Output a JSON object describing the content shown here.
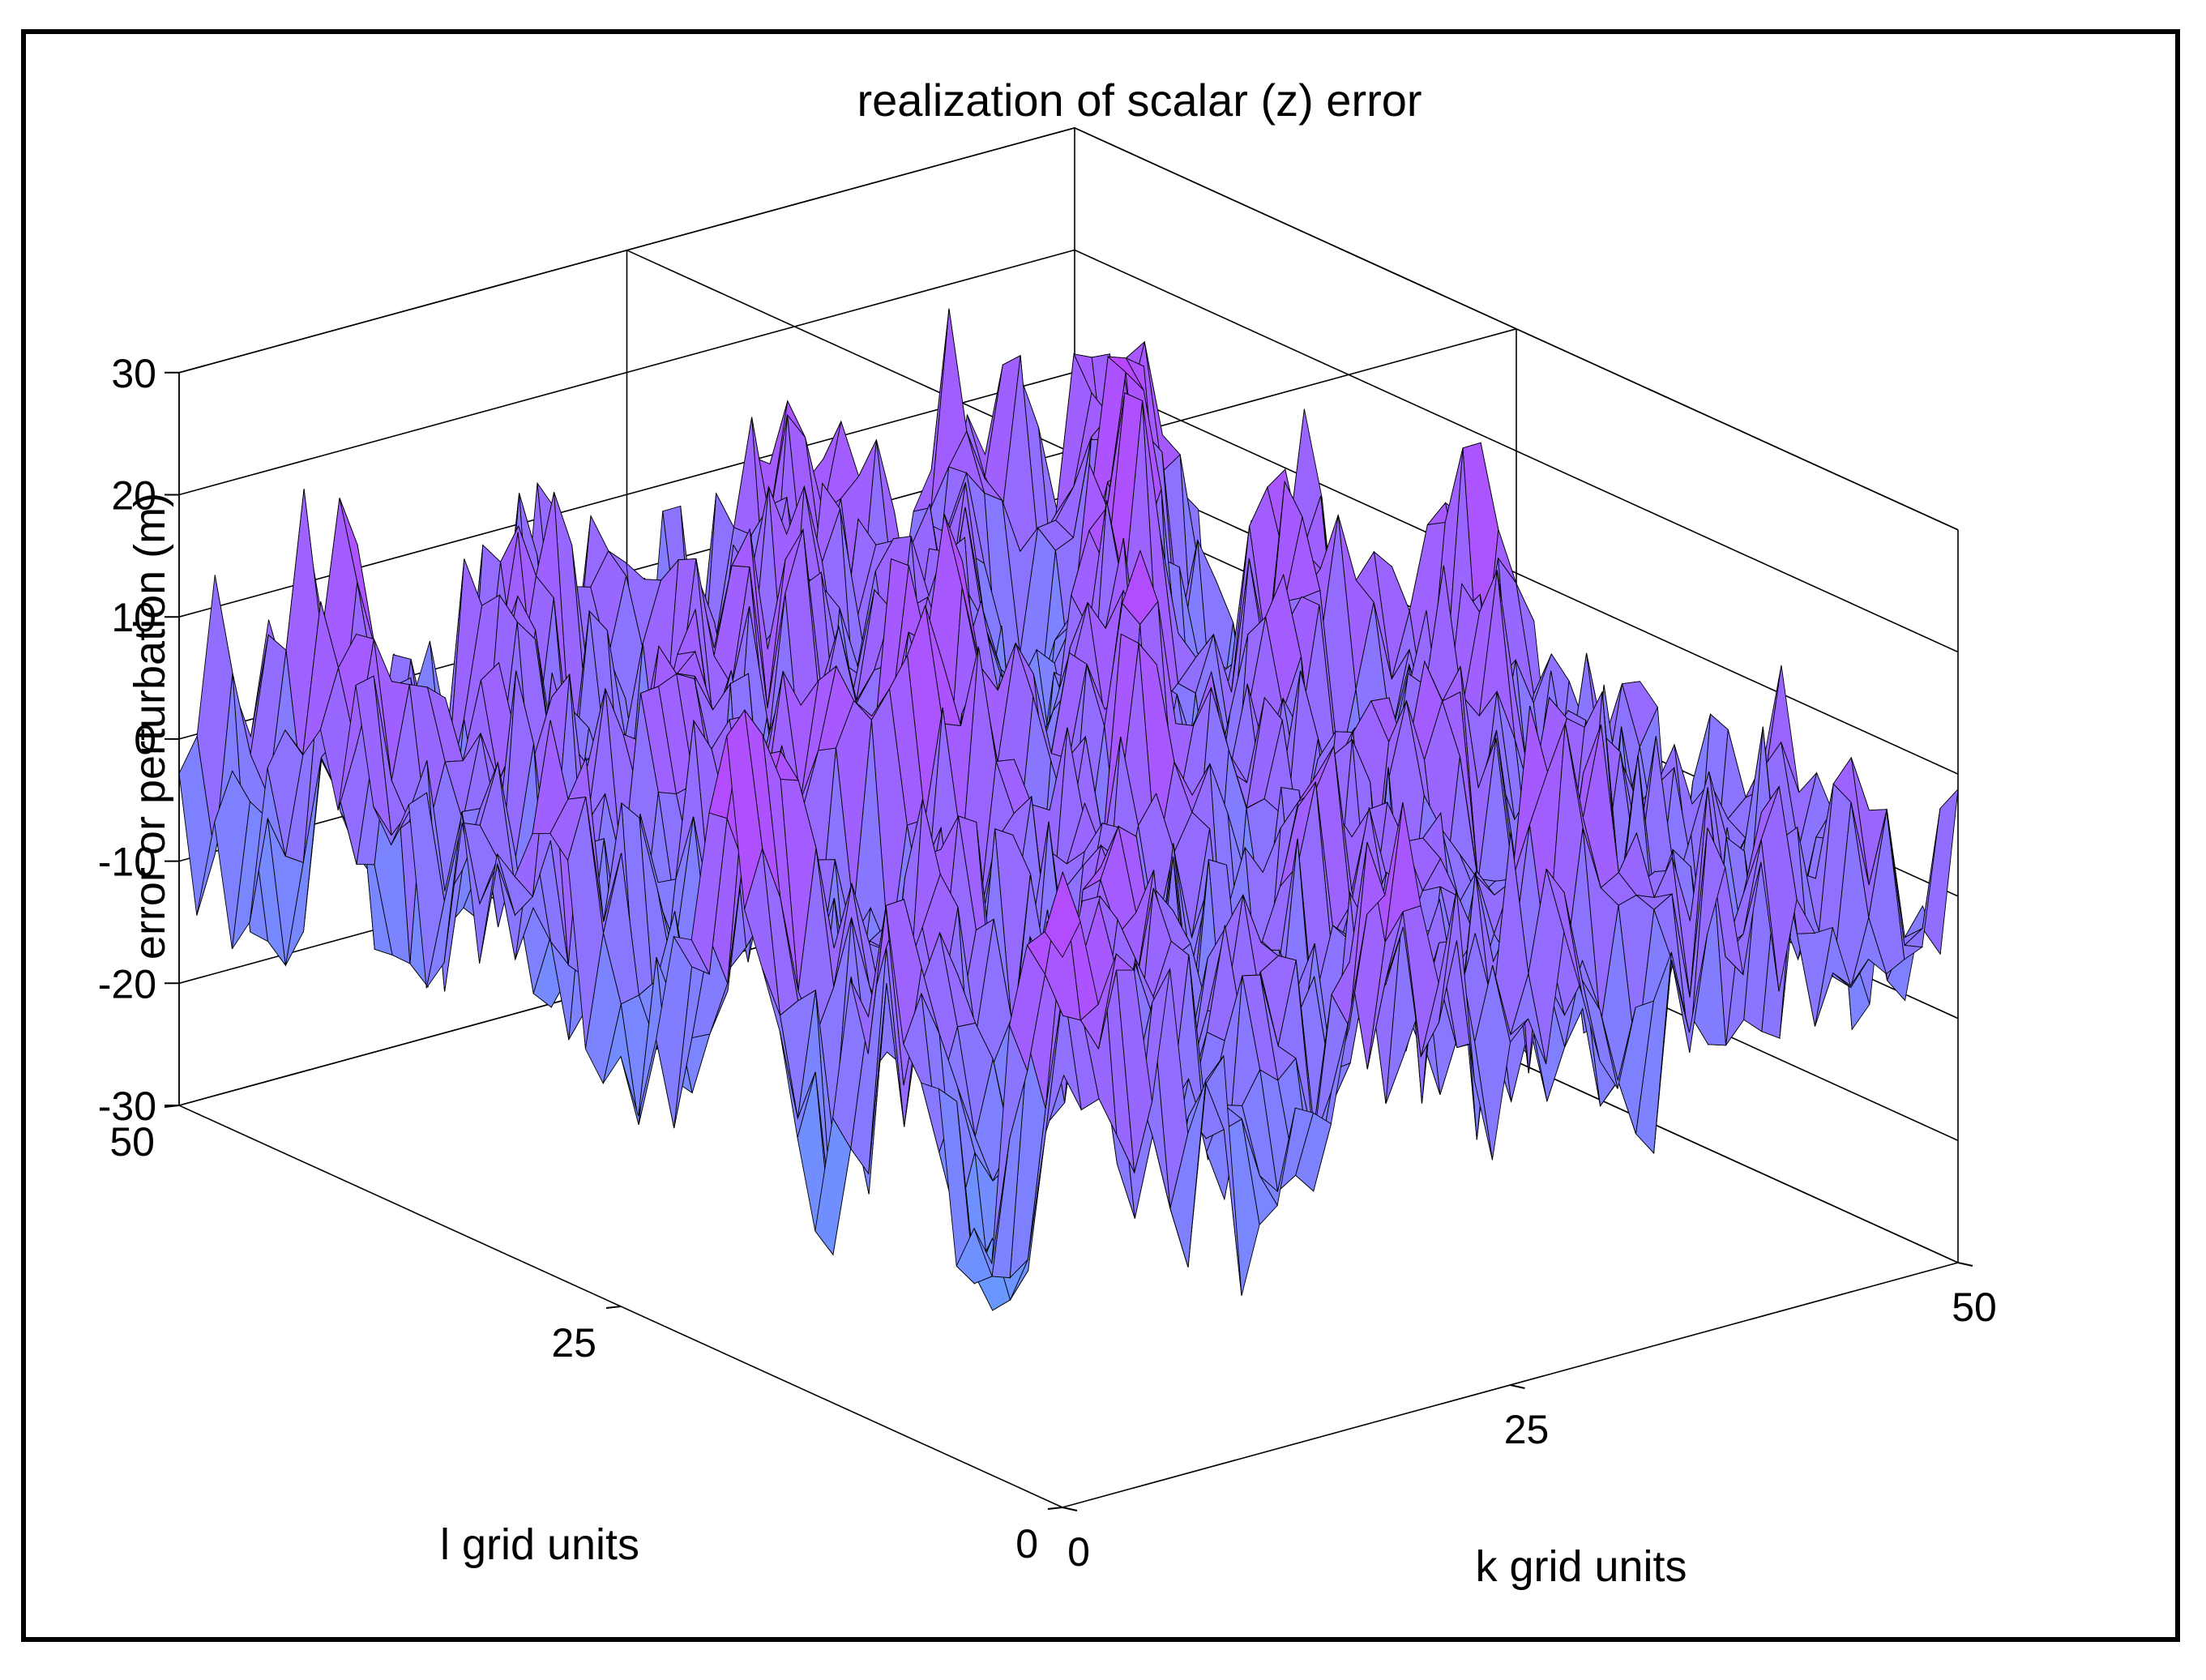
{
  "chart_data": {
    "type": "surface",
    "title": "realization of scalar (z) error",
    "xlabel": "k grid units",
    "ylabel": "l grid units",
    "zlabel": "error or perturbation (m)",
    "xlim": [
      0,
      50
    ],
    "ylim": [
      0,
      50
    ],
    "zlim": [
      -30,
      30
    ],
    "xticks": [
      0,
      25,
      50
    ],
    "yticks": [
      0,
      25,
      50
    ],
    "zticks": [
      -30,
      -20,
      -10,
      0,
      10,
      20,
      30
    ],
    "xtick_labels": [
      "0",
      "25",
      "50"
    ],
    "ytick_labels": [
      "0",
      "25",
      "50"
    ],
    "ztick_labels": [
      "-30",
      "-20",
      "-10",
      "0",
      "10",
      "20",
      "30"
    ],
    "grid_resolution": 51,
    "value_range": [
      -29,
      23
    ],
    "colormap": "cool",
    "colormap_colors": [
      "#00ffff",
      "#ff00ff"
    ],
    "edge_color": "#000000",
    "grid": true,
    "box": true
  }
}
